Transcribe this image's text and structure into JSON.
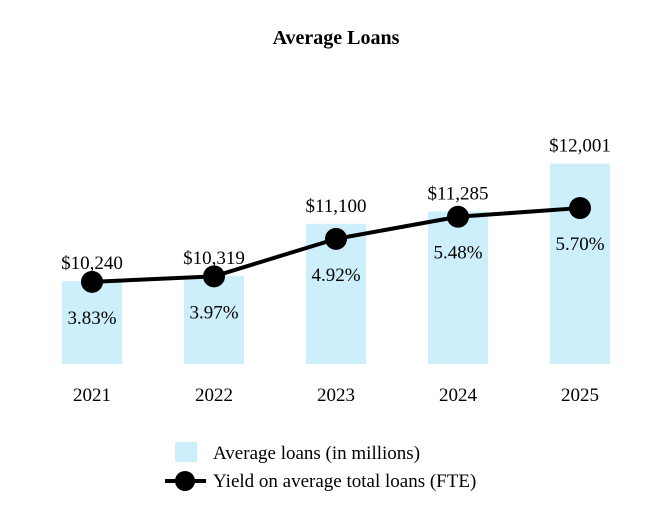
{
  "chart_data": {
    "type": "bar",
    "title": "Average Loans",
    "categories": [
      "2021",
      "2022",
      "2023",
      "2024",
      "2025"
    ],
    "series": [
      {
        "name": "Average loans (in millions)",
        "kind": "bar",
        "axis": "left",
        "values": [
          10240,
          10319,
          11100,
          11285,
          12001
        ],
        "labels": [
          "$10,240",
          "$10,319",
          "$11,100",
          "$11,285",
          "$12,001"
        ],
        "color": "#cdeefb",
        "ylim": [
          9000,
          12400
        ]
      },
      {
        "name": "Yield on average total loans (FTE)",
        "kind": "line",
        "axis": "right",
        "values": [
          3.83,
          3.97,
          4.92,
          5.48,
          5.7
        ],
        "labels": [
          "3.83%",
          "3.97%",
          "4.92%",
          "5.48%",
          "5.70%"
        ],
        "color": "#000000",
        "ylim": [
          1.75,
          7.5
        ]
      }
    ],
    "xlabel": "",
    "ylabel": "",
    "grid": false,
    "legend": "bottom-center"
  }
}
